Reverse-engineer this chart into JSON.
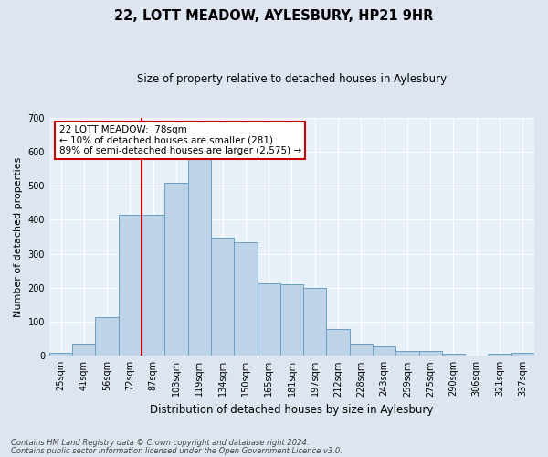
{
  "title": "22, LOTT MEADOW, AYLESBURY, HP21 9HR",
  "subtitle": "Size of property relative to detached houses in Aylesbury",
  "xlabel": "Distribution of detached houses by size in Aylesbury",
  "ylabel": "Number of detached properties",
  "bar_labels": [
    "25sqm",
    "41sqm",
    "56sqm",
    "72sqm",
    "87sqm",
    "103sqm",
    "119sqm",
    "134sqm",
    "150sqm",
    "165sqm",
    "181sqm",
    "197sqm",
    "212sqm",
    "228sqm",
    "243sqm",
    "259sqm",
    "275sqm",
    "290sqm",
    "306sqm",
    "321sqm",
    "337sqm"
  ],
  "bar_values": [
    8,
    37,
    113,
    415,
    415,
    510,
    578,
    347,
    335,
    212,
    210,
    200,
    80,
    37,
    27,
    14,
    14,
    5,
    0,
    5,
    8
  ],
  "bar_color": "#bdd4e8",
  "bar_edge_color": "#6a9ec0",
  "vline_color": "#cc0000",
  "vline_pos": 3.5,
  "ylim": [
    0,
    700
  ],
  "yticks": [
    0,
    100,
    200,
    300,
    400,
    500,
    600,
    700
  ],
  "annotation_title": "22 LOTT MEADOW:  78sqm",
  "annotation_line1": "← 10% of detached houses are smaller (281)",
  "annotation_line2": "89% of semi-detached houses are larger (2,575) →",
  "footer_line1": "Contains HM Land Registry data © Crown copyright and database right 2024.",
  "footer_line2": "Contains public sector information licensed under the Open Government Licence v3.0.",
  "bg_color": "#dde6f0",
  "plot_bg_color": "#e8f0f8",
  "grid_color": "#ffffff"
}
